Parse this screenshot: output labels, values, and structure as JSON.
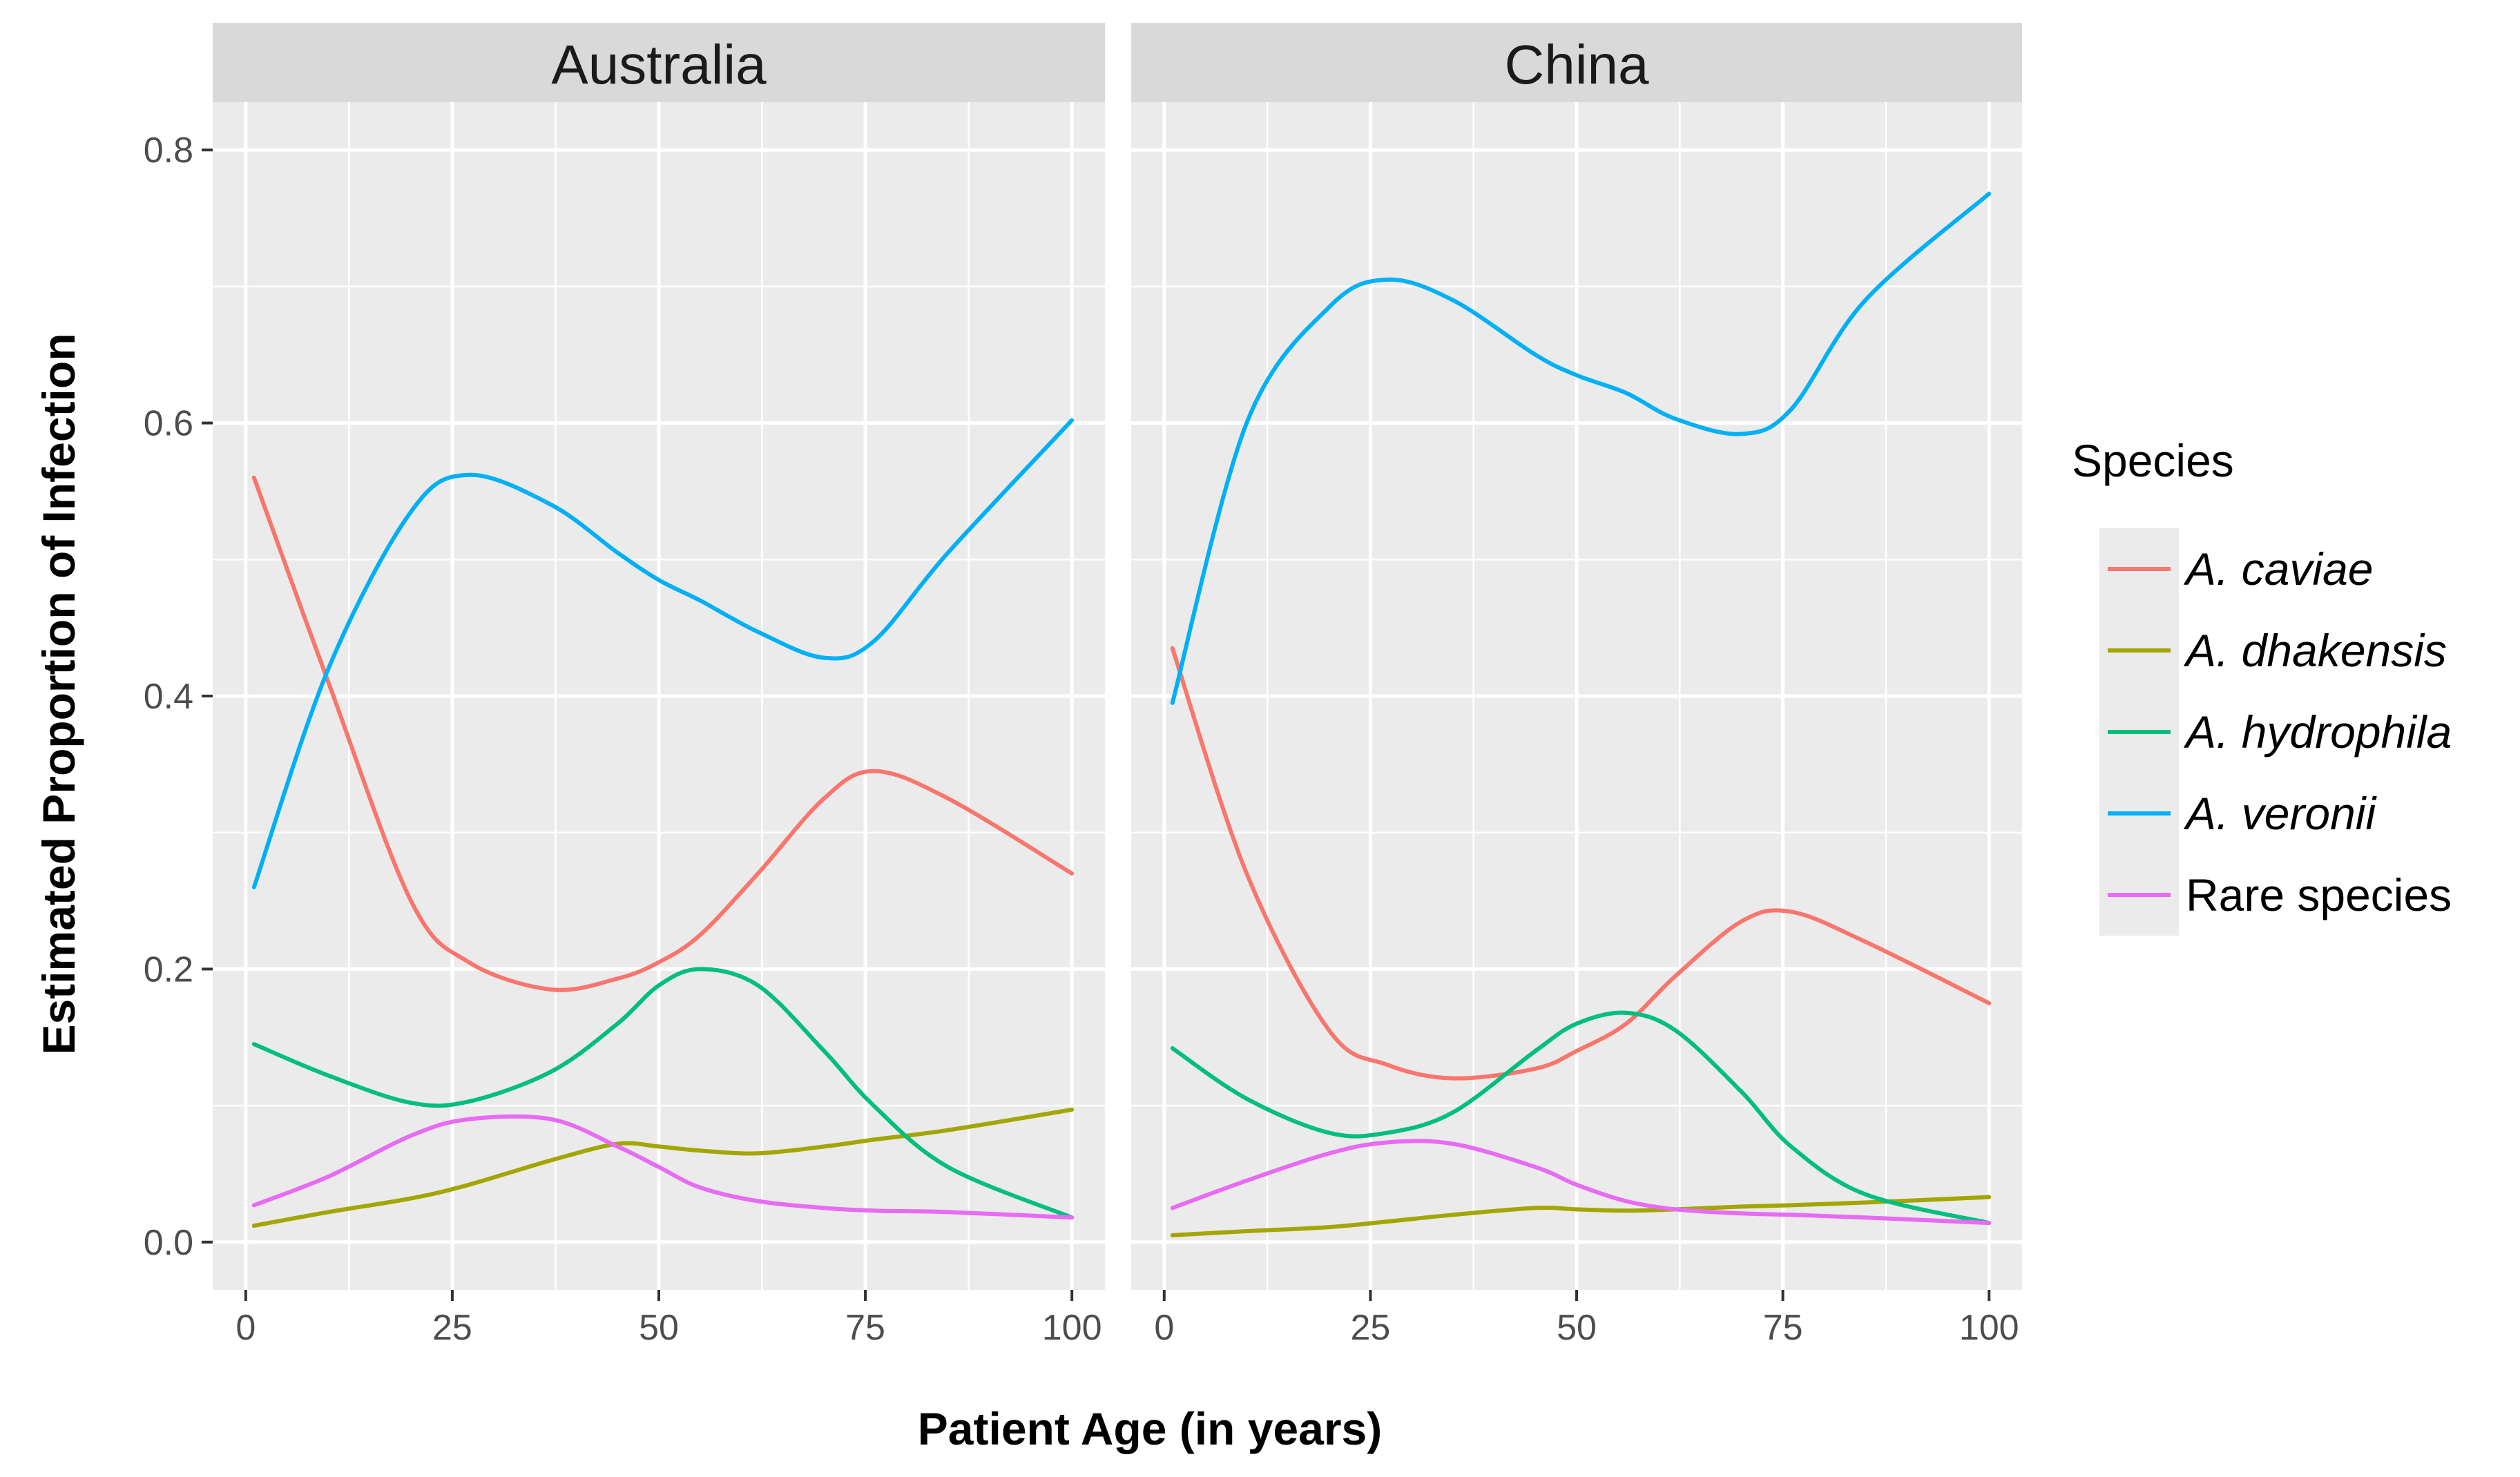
{
  "chart_data": {
    "type": "line",
    "xlabel": "Patient Age (in years)",
    "ylabel": "Estimated Proportion of Infection",
    "xlim": [
      -4,
      104
    ],
    "ylim": [
      -0.035,
      0.835
    ],
    "x_ticks": [
      0,
      25,
      50,
      75,
      100
    ],
    "x_tick_labels": [
      "0",
      "25",
      "50",
      "75",
      "100"
    ],
    "y_ticks": [
      0.0,
      0.2,
      0.4,
      0.6,
      0.8
    ],
    "y_tick_labels": [
      "0.0",
      "0.2",
      "0.4",
      "0.6",
      "0.8"
    ],
    "grid": true,
    "legend": {
      "title": "Species",
      "position": "right",
      "entries": [
        {
          "label": "A. caviae",
          "color": "#F8766D",
          "italic": true
        },
        {
          "label": "A. dhakensis",
          "color": "#A3A500",
          "italic": true
        },
        {
          "label": "A. hydrophila",
          "color": "#00BF7D",
          "italic": true
        },
        {
          "label": "A. veronii",
          "color": "#00B0F6",
          "italic": true
        },
        {
          "label": "Rare species",
          "color": "#E76BF3",
          "italic": false
        }
      ]
    },
    "facets": [
      {
        "label": "Australia",
        "x": [
          1,
          10,
          20,
          27,
          37,
          45,
          50,
          55,
          62,
          70,
          76,
          85,
          100
        ],
        "series": [
          {
            "name": "A. caviae",
            "color": "#F8766D",
            "values": [
              0.56,
              0.41,
              0.25,
              0.205,
              0.185,
              0.193,
              0.205,
              0.225,
              0.27,
              0.325,
              0.345,
              0.325,
              0.27
            ]
          },
          {
            "name": "A. dhakensis",
            "color": "#A3A500",
            "values": [
              0.012,
              0.022,
              0.032,
              0.042,
              0.06,
              0.072,
              0.07,
              0.067,
              0.065,
              0.07,
              0.075,
              0.082,
              0.097
            ]
          },
          {
            "name": "A. hydrophila",
            "color": "#00BF7D",
            "values": [
              0.145,
              0.122,
              0.102,
              0.103,
              0.125,
              0.16,
              0.188,
              0.2,
              0.188,
              0.14,
              0.1,
              0.055,
              0.018
            ]
          },
          {
            "name": "A. veronii",
            "color": "#00B0F6",
            "values": [
              0.26,
              0.42,
              0.535,
              0.562,
              0.54,
              0.505,
              0.485,
              0.47,
              0.447,
              0.428,
              0.44,
              0.505,
              0.602
            ]
          },
          {
            "name": "Rare species",
            "color": "#E76BF3",
            "values": [
              0.027,
              0.048,
              0.078,
              0.09,
              0.09,
              0.07,
              0.055,
              0.04,
              0.03,
              0.025,
              0.023,
              0.022,
              0.018
            ]
          }
        ]
      },
      {
        "label": "China",
        "x": [
          1,
          10,
          20,
          27,
          35,
          45,
          50,
          56,
          62,
          70,
          76,
          85,
          100
        ],
        "series": [
          {
            "name": "A. caviae",
            "color": "#F8766D",
            "values": [
              0.435,
              0.27,
              0.155,
              0.13,
              0.12,
              0.127,
              0.14,
              0.16,
              0.195,
              0.235,
              0.242,
              0.22,
              0.175
            ]
          },
          {
            "name": "A. dhakensis",
            "color": "#A3A500",
            "values": [
              0.005,
              0.008,
              0.011,
              0.015,
              0.02,
              0.025,
              0.024,
              0.023,
              0.024,
              0.026,
              0.027,
              0.029,
              0.033
            ]
          },
          {
            "name": "A. hydrophila",
            "color": "#00BF7D",
            "values": [
              0.142,
              0.105,
              0.08,
              0.08,
              0.095,
              0.14,
              0.16,
              0.168,
              0.155,
              0.11,
              0.07,
              0.035,
              0.014
            ]
          },
          {
            "name": "A. veronii",
            "color": "#00B0F6",
            "values": [
              0.395,
              0.6,
              0.685,
              0.705,
              0.69,
              0.65,
              0.635,
              0.622,
              0.603,
              0.592,
              0.61,
              0.69,
              0.768
            ]
          },
          {
            "name": "Rare species",
            "color": "#E76BF3",
            "values": [
              0.025,
              0.045,
              0.065,
              0.073,
              0.072,
              0.055,
              0.042,
              0.03,
              0.024,
              0.021,
              0.02,
              0.018,
              0.014
            ]
          }
        ]
      }
    ]
  }
}
